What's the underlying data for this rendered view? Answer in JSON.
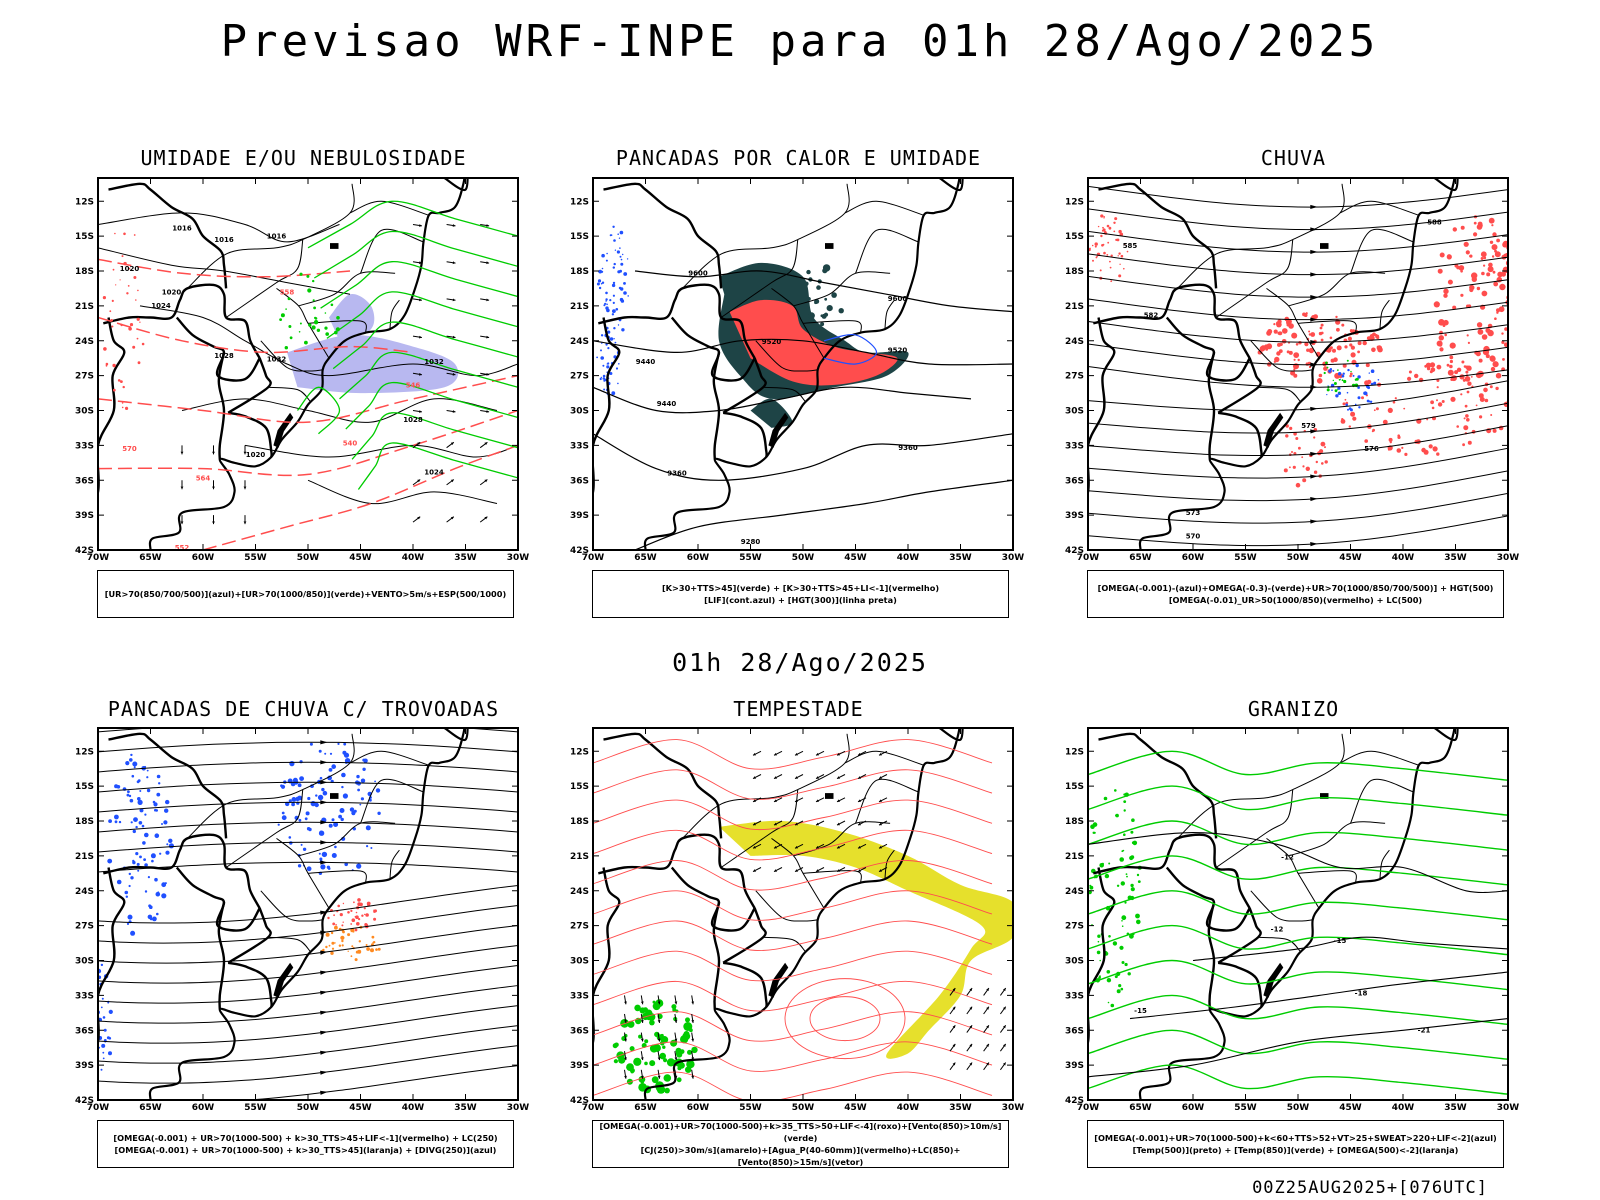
{
  "header": {
    "title": "Previsao WRF-INPE  para 01h 28/Ago/2025",
    "mid_time": "01h 28/Ago/2025",
    "footer_stamp": "00Z25AUG2025+[076UTC]"
  },
  "axes": {
    "lat_labels": [
      "12S",
      "15S",
      "18S",
      "21S",
      "24S",
      "27S",
      "30S",
      "33S",
      "36S",
      "39S",
      "42S"
    ],
    "lon_labels": [
      "70W",
      "65W",
      "60W",
      "55W",
      "50W",
      "45W",
      "40W",
      "35W",
      "30W"
    ]
  },
  "panels": [
    {
      "id": "umidade",
      "title": "UMIDADE E/OU NEBULOSIDADE",
      "legend": [
        "[UR>70(850/700/500)](azul)+[UR>70(1000/850)](verde)+VENTO>5m/s+ESP(500/1000)"
      ],
      "contour_labels": [
        "1016",
        "1016",
        "1016",
        "1020",
        "1020",
        "1024",
        "1028",
        "1032",
        "1032",
        "1028",
        "1024",
        "1020",
        "564",
        "570",
        "558",
        "552",
        "546",
        "540"
      ]
    },
    {
      "id": "pancadas-calor",
      "title": "PANCADAS POR CALOR E UMIDADE",
      "legend": [
        "[K>30+TTS>45](verde) + [K>30+TTS>45+LI<-1](vermelho)",
        "[LIF](cont.azul) + [HGT(300)](linha preta)"
      ],
      "contour_labels": [
        "9600",
        "9600",
        "9520",
        "9520",
        "9440",
        "9440",
        "9360",
        "9360",
        "9280"
      ]
    },
    {
      "id": "chuva",
      "title": "CHUVA",
      "legend": [
        "[OMEGA(-0.001)-(azul)+OMEGA(-0.3)-(verde)+UR>70(1000/850/700/500)] + HGT(500)",
        "[OMEGA(-0.01)_UR>50(1000/850)(vermelho) + LC(500)"
      ],
      "contour_labels": [
        "585",
        "582",
        "579",
        "576",
        "573",
        "570",
        "588"
      ]
    },
    {
      "id": "pancadas-trovoadas",
      "title": "PANCADAS DE CHUVA C/ TROVOADAS",
      "legend": [
        "[OMEGA(-0.001) + UR>70(1000-500) + k>30_TTS>45+LIF<-1](vermelho) + LC(250)",
        "[OMEGA(-0.001) + UR>70(1000-500) + k>30_TTS>45](laranja) + [DIVG(250)](azul)"
      ],
      "contour_labels": []
    },
    {
      "id": "tempestade",
      "title": "TEMPESTADE",
      "legend": [
        "[OMEGA(-0.001)+UR>70(1000-500)+k>35_TTS>50+LIF<-4](roxo)+[Vento(850)>10m/s](verde)",
        "[CJ(250)>30m/s](amarelo)+[Agua_P(40-60mm)](vermelho)+LC(850)+[Vento(850)>15m/s](vetor)"
      ],
      "contour_labels": []
    },
    {
      "id": "granizo",
      "title": "GRANIZO",
      "legend": [
        "[OMEGA(-0.001)+UR>70(1000-500)+k<60+TTS>52+VT>25+SWEAT>220+LIF<-2](azul)",
        "[Temp(500)](preto) + [Temp(850)](verde) + [OMEGA(500)<-2](laranja)"
      ],
      "contour_labels": [
        "-12",
        "-15",
        "-18",
        "-21",
        "-12",
        "-15"
      ]
    }
  ],
  "colors": {
    "red": "#ff4d4d",
    "green": "#00cc00",
    "blue": "#2050ff",
    "lavender": "#b8b8f0",
    "darkteal": "#1e4446",
    "yellow": "#e6e02c",
    "orange": "#ff8a20"
  }
}
